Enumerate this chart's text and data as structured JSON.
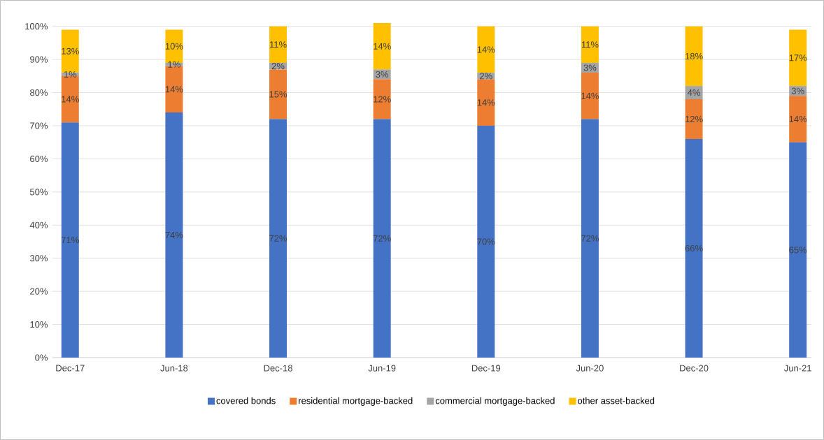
{
  "chart_data": {
    "type": "bar",
    "stacked": true,
    "categories": [
      "Dec-17",
      "Jun-18",
      "Dec-18",
      "Jun-19",
      "Dec-19",
      "Jun-20",
      "Dec-20",
      "Jun-21"
    ],
    "series": [
      {
        "name": "covered bonds",
        "color": "#4472c4",
        "values": [
          71,
          74,
          72,
          72,
          70,
          72,
          66,
          65
        ],
        "value_labels": [
          "71%",
          "74%",
          "72%",
          "72%",
          "70%",
          "72%",
          "66%",
          "65%"
        ]
      },
      {
        "name": "residential mortgage-backed",
        "color": "#ed7d31",
        "values": [
          14,
          14,
          15,
          12,
          14,
          14,
          12,
          14
        ],
        "value_labels": [
          "14%",
          "14%",
          "15%",
          "12%",
          "14%",
          "14%",
          "12%",
          "14%"
        ]
      },
      {
        "name": "commercial mortgage-backed",
        "color": "#a5a5a5",
        "values": [
          1,
          1,
          2,
          3,
          2,
          3,
          4,
          3
        ],
        "value_labels": [
          "1%",
          "1%",
          "2%",
          "3%",
          "2%",
          "3%",
          "4%",
          "3%"
        ]
      },
      {
        "name": "other asset-backed",
        "color": "#ffc000",
        "values": [
          13,
          10,
          11,
          14,
          14,
          11,
          18,
          17
        ],
        "value_labels": [
          "13%",
          "10%",
          "11%",
          "14%",
          "14%",
          "11%",
          "18%",
          "17%"
        ]
      }
    ],
    "ylim": [
      0,
      101
    ],
    "yticks": [
      {
        "value": 0,
        "label": "0%"
      },
      {
        "value": 10,
        "label": "10%"
      },
      {
        "value": 20,
        "label": "20%"
      },
      {
        "value": 30,
        "label": "30%"
      },
      {
        "value": 40,
        "label": "40%"
      },
      {
        "value": 50,
        "label": "50%"
      },
      {
        "value": 60,
        "label": "60%"
      },
      {
        "value": 70,
        "label": "70%"
      },
      {
        "value": 80,
        "label": "80%"
      },
      {
        "value": 90,
        "label": "90%"
      },
      {
        "value": 100,
        "label": "100%"
      }
    ],
    "grid": "y",
    "legend": "bottom"
  }
}
